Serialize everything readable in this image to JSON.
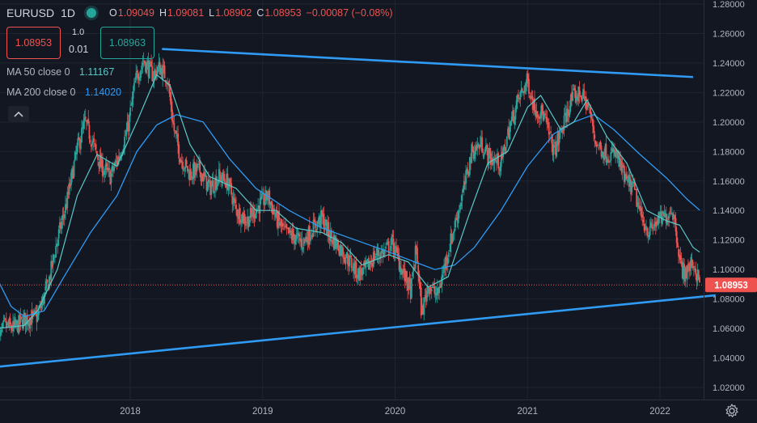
{
  "header": {
    "symbol": "EURUSD",
    "timeframe": "1D",
    "ohlc": {
      "o_label": "O",
      "o": "1.09049",
      "h_label": "H",
      "h": "1.09081",
      "l_label": "L",
      "l": "1.08902",
      "c_label": "C",
      "c": "1.08953",
      "change": "−0.00087 (−0.08%)"
    }
  },
  "trade": {
    "sell_price": "1.08953",
    "buy_price": "1.08963",
    "spread": "1.0",
    "quantity": "0.01"
  },
  "indicators": [
    {
      "label": "MA 50 close 0",
      "value": "1.11167"
    },
    {
      "label": "MA 200 close 0",
      "value": "1.14020"
    }
  ],
  "colors": {
    "background": "#131722",
    "grid": "#1f2430",
    "up": "#26a69a",
    "down": "#ef5350",
    "ma50": "#5bc8c8",
    "ma200": "#2f9bf5",
    "trendline": "#2f9bf5",
    "axis_text": "#b2b5be"
  },
  "icons": {
    "status": "status-dot-icon",
    "collapse": "chevron-up-icon",
    "settings": "gear-icon"
  },
  "chart_data": {
    "type": "candlestick",
    "symbol": "EURUSD",
    "y_ticks": [
      "1.28000",
      "1.26000",
      "1.24000",
      "1.22000",
      "1.20000",
      "1.18000",
      "1.16000",
      "1.14000",
      "1.12000",
      "1.10000",
      "1.08000",
      "1.06000",
      "1.04000",
      "1.02000"
    ],
    "ylim": [
      1.01,
      1.285
    ],
    "x_ticks": [
      {
        "label": "2018",
        "t": 2018.0
      },
      {
        "label": "2019",
        "t": 2019.0
      },
      {
        "label": "2020",
        "t": 2020.0
      },
      {
        "label": "2021",
        "t": 2021.0
      },
      {
        "label": "2022",
        "t": 2022.0
      }
    ],
    "xlim": [
      2017.0,
      2022.42
    ],
    "last_price": "1.08953",
    "last_price_value": 1.08953,
    "price_path": [
      [
        2017.0,
        1.05
      ],
      [
        2017.05,
        1.062
      ],
      [
        2017.12,
        1.06
      ],
      [
        2017.2,
        1.066
      ],
      [
        2017.3,
        1.068
      ],
      [
        2017.38,
        1.09
      ],
      [
        2017.45,
        1.12
      ],
      [
        2017.52,
        1.145
      ],
      [
        2017.6,
        1.182
      ],
      [
        2017.66,
        1.2
      ],
      [
        2017.72,
        1.185
      ],
      [
        2017.78,
        1.17
      ],
      [
        2017.85,
        1.163
      ],
      [
        2017.92,
        1.178
      ],
      [
        2017.98,
        1.195
      ],
      [
        2018.04,
        1.228
      ],
      [
        2018.1,
        1.242
      ],
      [
        2018.17,
        1.232
      ],
      [
        2018.22,
        1.237
      ],
      [
        2018.28,
        1.23
      ],
      [
        2018.33,
        1.195
      ],
      [
        2018.38,
        1.176
      ],
      [
        2018.45,
        1.165
      ],
      [
        2018.52,
        1.168
      ],
      [
        2018.6,
        1.155
      ],
      [
        2018.67,
        1.163
      ],
      [
        2018.74,
        1.159
      ],
      [
        2018.8,
        1.14
      ],
      [
        2018.88,
        1.133
      ],
      [
        2018.96,
        1.142
      ],
      [
        2019.04,
        1.15
      ],
      [
        2019.1,
        1.135
      ],
      [
        2019.17,
        1.125
      ],
      [
        2019.24,
        1.122
      ],
      [
        2019.3,
        1.118
      ],
      [
        2019.38,
        1.128
      ],
      [
        2019.45,
        1.135
      ],
      [
        2019.5,
        1.124
      ],
      [
        2019.58,
        1.115
      ],
      [
        2019.66,
        1.105
      ],
      [
        2019.72,
        1.097
      ],
      [
        2019.78,
        1.1
      ],
      [
        2019.85,
        1.11
      ],
      [
        2019.92,
        1.112
      ],
      [
        2019.98,
        1.118
      ],
      [
        2020.05,
        1.1
      ],
      [
        2020.12,
        1.085
      ],
      [
        2020.16,
        1.115
      ],
      [
        2020.2,
        1.07
      ],
      [
        2020.25,
        1.09
      ],
      [
        2020.32,
        1.082
      ],
      [
        2020.38,
        1.105
      ],
      [
        2020.45,
        1.13
      ],
      [
        2020.52,
        1.155
      ],
      [
        2020.58,
        1.18
      ],
      [
        2020.65,
        1.185
      ],
      [
        2020.72,
        1.175
      ],
      [
        2020.8,
        1.172
      ],
      [
        2020.86,
        1.195
      ],
      [
        2020.93,
        1.215
      ],
      [
        2021.0,
        1.228
      ],
      [
        2021.05,
        1.21
      ],
      [
        2021.12,
        1.205
      ],
      [
        2021.2,
        1.18
      ],
      [
        2021.26,
        1.195
      ],
      [
        2021.33,
        1.215
      ],
      [
        2021.4,
        1.22
      ],
      [
        2021.46,
        1.21
      ],
      [
        2021.52,
        1.185
      ],
      [
        2021.6,
        1.178
      ],
      [
        2021.67,
        1.178
      ],
      [
        2021.74,
        1.16
      ],
      [
        2021.8,
        1.155
      ],
      [
        2021.86,
        1.135
      ],
      [
        2021.92,
        1.125
      ],
      [
        2021.98,
        1.133
      ],
      [
        2022.04,
        1.135
      ],
      [
        2022.09,
        1.142
      ],
      [
        2022.12,
        1.128
      ],
      [
        2022.16,
        1.1
      ],
      [
        2022.2,
        1.098
      ],
      [
        2022.25,
        1.105
      ],
      [
        2022.3,
        1.09
      ]
    ],
    "ma50": [
      [
        2017.0,
        1.06
      ],
      [
        2017.2,
        1.062
      ],
      [
        2017.3,
        1.072
      ],
      [
        2017.45,
        1.1
      ],
      [
        2017.6,
        1.15
      ],
      [
        2017.75,
        1.178
      ],
      [
        2017.9,
        1.17
      ],
      [
        2018.05,
        1.2
      ],
      [
        2018.2,
        1.232
      ],
      [
        2018.3,
        1.225
      ],
      [
        2018.45,
        1.185
      ],
      [
        2018.6,
        1.163
      ],
      [
        2018.8,
        1.155
      ],
      [
        2018.95,
        1.14
      ],
      [
        2019.1,
        1.14
      ],
      [
        2019.25,
        1.128
      ],
      [
        2019.45,
        1.125
      ],
      [
        2019.6,
        1.118
      ],
      [
        2019.75,
        1.103
      ],
      [
        2019.95,
        1.11
      ],
      [
        2020.1,
        1.105
      ],
      [
        2020.25,
        1.088
      ],
      [
        2020.4,
        1.095
      ],
      [
        2020.55,
        1.135
      ],
      [
        2020.7,
        1.172
      ],
      [
        2020.85,
        1.18
      ],
      [
        2021.0,
        1.21
      ],
      [
        2021.1,
        1.218
      ],
      [
        2021.25,
        1.195
      ],
      [
        2021.35,
        1.2
      ],
      [
        2021.45,
        1.215
      ],
      [
        2021.6,
        1.19
      ],
      [
        2021.75,
        1.172
      ],
      [
        2021.9,
        1.14
      ],
      [
        2022.05,
        1.133
      ],
      [
        2022.15,
        1.13
      ],
      [
        2022.25,
        1.115
      ],
      [
        2022.3,
        1.1117
      ]
    ],
    "ma200": [
      [
        2017.0,
        1.093
      ],
      [
        2017.1,
        1.075
      ],
      [
        2017.2,
        1.068
      ],
      [
        2017.35,
        1.072
      ],
      [
        2017.5,
        1.095
      ],
      [
        2017.7,
        1.125
      ],
      [
        2017.9,
        1.15
      ],
      [
        2018.05,
        1.18
      ],
      [
        2018.2,
        1.198
      ],
      [
        2018.35,
        1.205
      ],
      [
        2018.55,
        1.2
      ],
      [
        2018.75,
        1.175
      ],
      [
        2018.95,
        1.155
      ],
      [
        2019.2,
        1.14
      ],
      [
        2019.45,
        1.128
      ],
      [
        2019.7,
        1.12
      ],
      [
        2019.95,
        1.112
      ],
      [
        2020.15,
        1.105
      ],
      [
        2020.3,
        1.1
      ],
      [
        2020.45,
        1.103
      ],
      [
        2020.6,
        1.115
      ],
      [
        2020.8,
        1.14
      ],
      [
        2021.0,
        1.17
      ],
      [
        2021.2,
        1.192
      ],
      [
        2021.35,
        1.2
      ],
      [
        2021.5,
        1.205
      ],
      [
        2021.65,
        1.195
      ],
      [
        2021.85,
        1.178
      ],
      [
        2022.05,
        1.162
      ],
      [
        2022.2,
        1.148
      ],
      [
        2022.3,
        1.1402
      ]
    ],
    "trendlines": [
      {
        "x": [
          2018.24,
          2022.25
        ],
        "y": [
          1.2495,
          1.2305
        ]
      },
      {
        "x": [
          2017.0,
          2022.42
        ],
        "y": [
          1.034,
          1.0825
        ]
      }
    ]
  }
}
